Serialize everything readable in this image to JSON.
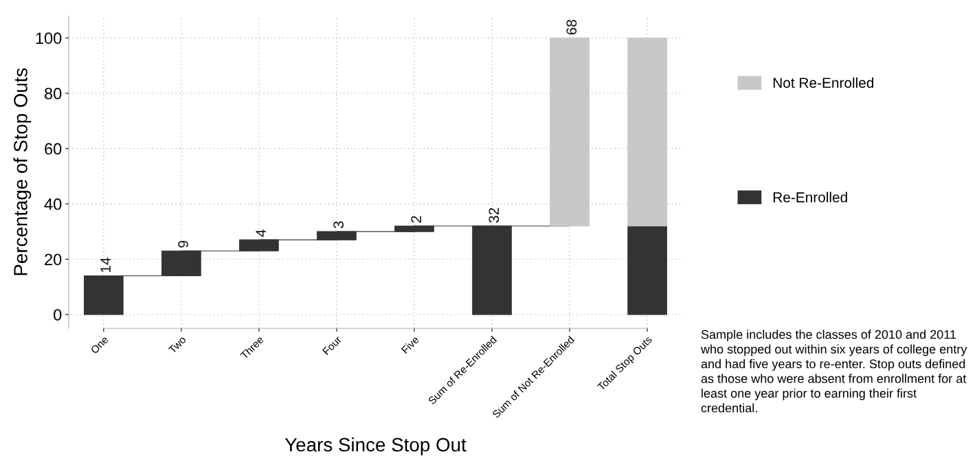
{
  "chart_data": {
    "type": "bar",
    "stacked": true,
    "xlabel": "Years Since Stop Out",
    "ylabel": "Percentage of Stop Outs",
    "categories": [
      "One",
      "Two",
      "Three",
      "Four",
      "Five",
      "Sum of Re-Enrolled",
      "Sum of Not Re-Enrolled",
      "Total Stop Outs"
    ],
    "series": [
      {
        "name": "Re-Enrolled",
        "color": "#333333",
        "values": [
          14,
          9,
          4,
          3,
          2,
          32,
          null,
          32
        ],
        "base": [
          0,
          14,
          23,
          27,
          30,
          0,
          null,
          0
        ],
        "value_labels": [
          "14",
          "9",
          "4",
          "3",
          "2",
          "32",
          null,
          null
        ]
      },
      {
        "name": "Not Re-Enrolled",
        "color": "#c8c8c8",
        "values": [
          null,
          null,
          null,
          null,
          null,
          null,
          68,
          68
        ],
        "base": [
          null,
          null,
          null,
          null,
          null,
          null,
          32,
          32
        ],
        "value_labels": [
          null,
          null,
          null,
          null,
          null,
          null,
          "68",
          null
        ]
      }
    ],
    "ylim": [
      -5,
      108
    ],
    "yticks": [
      0,
      20,
      40,
      60,
      80,
      100
    ],
    "grid": true,
    "legend": "right",
    "annotations": [
      "Sample includes the classes of 2010 and 2011 who stopped out within six years of college entry and had five years to re-enter. Stop outs defined as those who were absent from enrollment for at least one year prior to earning their first credential."
    ]
  }
}
